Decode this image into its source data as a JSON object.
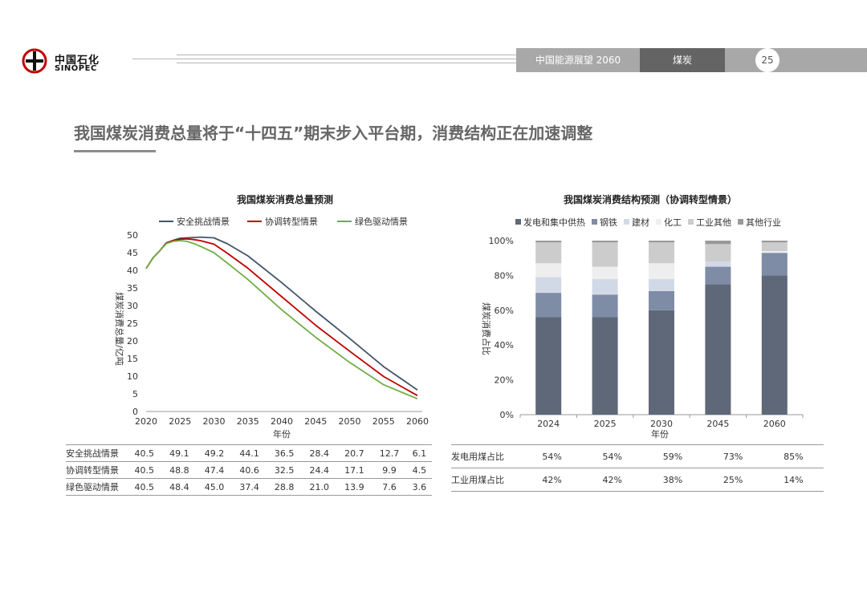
{
  "header": {
    "brand_cn": "中国石化",
    "brand_en": "SINOPEC",
    "report_title": "中国能源展望 2060",
    "section": "煤炭",
    "page_number": "25"
  },
  "slide_title": "我国煤炭消费总量将于“十四五”期末步入平台期，消费结构正在加速调整",
  "chart_data": [
    {
      "type": "line",
      "title": "我国煤炭消费总量预测",
      "xlabel": "年份",
      "ylabel": "煤炭消费总量/亿吨",
      "x": [
        2020,
        2025,
        2030,
        2035,
        2040,
        2045,
        2050,
        2055,
        2060
      ],
      "xticks": [
        "2020",
        "2025",
        "2030",
        "2035",
        "2040",
        "2045",
        "2050",
        "2055",
        "2060"
      ],
      "ylim": [
        0,
        50
      ],
      "yticks": [
        "0",
        "5",
        "10",
        "15",
        "20",
        "25",
        "30",
        "35",
        "40",
        "45",
        "50"
      ],
      "legend_position": "top",
      "series": [
        {
          "name": "安全挑战情景",
          "color": "#44546a",
          "points": [
            [
              2020,
              40.5
            ],
            [
              2021,
              43.5
            ],
            [
              2022,
              45.5
            ],
            [
              2023,
              47.8
            ],
            [
              2024,
              48.5
            ],
            [
              2025,
              49.1
            ],
            [
              2026,
              49.2
            ],
            [
              2027,
              49.3
            ],
            [
              2028,
              49.4
            ],
            [
              2029,
              49.3
            ],
            [
              2030,
              49.2
            ],
            [
              2032,
              47.5
            ],
            [
              2035,
              44.1
            ],
            [
              2040,
              36.5
            ],
            [
              2045,
              28.4
            ],
            [
              2050,
              20.7
            ],
            [
              2055,
              12.7
            ],
            [
              2060,
              6.1
            ]
          ],
          "values": [
            "40.5",
            "49.1",
            "49.2",
            "44.1",
            "36.5",
            "28.4",
            "20.7",
            "12.7",
            "6.1"
          ]
        },
        {
          "name": "协调转型情景",
          "color": "#c00000",
          "points": [
            [
              2020,
              40.5
            ],
            [
              2021,
              43.5
            ],
            [
              2022,
              45.5
            ],
            [
              2023,
              47.8
            ],
            [
              2024,
              48.4
            ],
            [
              2025,
              48.8
            ],
            [
              2026,
              48.9
            ],
            [
              2027,
              48.7
            ],
            [
              2028,
              48.4
            ],
            [
              2030,
              47.4
            ],
            [
              2032,
              44.8
            ],
            [
              2035,
              40.6
            ],
            [
              2040,
              32.5
            ],
            [
              2045,
              24.4
            ],
            [
              2050,
              17.1
            ],
            [
              2055,
              9.9
            ],
            [
              2060,
              4.5
            ]
          ],
          "values": [
            "40.5",
            "48.8",
            "47.4",
            "40.6",
            "32.5",
            "24.4",
            "17.1",
            "9.9",
            "4.5"
          ]
        },
        {
          "name": "绿色驱动情景",
          "color": "#70ad47",
          "points": [
            [
              2020,
              40.5
            ],
            [
              2021,
              43.5
            ],
            [
              2022,
              45.5
            ],
            [
              2023,
              47.6
            ],
            [
              2024,
              48.2
            ],
            [
              2025,
              48.4
            ],
            [
              2026,
              48.2
            ],
            [
              2027,
              47.6
            ],
            [
              2028,
              46.8
            ],
            [
              2030,
              45.0
            ],
            [
              2032,
              42.0
            ],
            [
              2035,
              37.4
            ],
            [
              2040,
              28.8
            ],
            [
              2045,
              21.0
            ],
            [
              2050,
              13.9
            ],
            [
              2055,
              7.6
            ],
            [
              2060,
              3.6
            ]
          ],
          "values": [
            "40.5",
            "48.4",
            "45.0",
            "37.4",
            "28.8",
            "21.0",
            "13.9",
            "7.6",
            "3.6"
          ]
        }
      ]
    },
    {
      "type": "bar",
      "stacked": true,
      "title": "我国煤炭消费结构预测（协调转型情景）",
      "xlabel": "年份",
      "ylabel": "煤炭消费占比",
      "categories": [
        "2024",
        "2025",
        "2030",
        "2045",
        "2060"
      ],
      "ylim": [
        0,
        100
      ],
      "yticks": [
        "0%",
        "20%",
        "40%",
        "60%",
        "80%",
        "100%"
      ],
      "legend_position": "top",
      "series": [
        {
          "name": "发电和集中供热",
          "color": "#5e6878",
          "values": [
            56,
            56,
            60,
            75,
            80
          ]
        },
        {
          "name": "钢铁",
          "color": "#7f8ca6",
          "values": [
            14,
            13,
            11,
            10,
            13
          ]
        },
        {
          "name": "建材",
          "color": "#d2d9e6",
          "values": [
            9,
            9,
            7,
            3,
            0
          ]
        },
        {
          "name": "化工",
          "color": "#eeeeee",
          "values": [
            8,
            7,
            9,
            0,
            1
          ]
        },
        {
          "name": "工业其他",
          "color": "#cccccc",
          "values": [
            12,
            14,
            12,
            10,
            5
          ]
        },
        {
          "name": "其他行业",
          "color": "#999999",
          "values": [
            1,
            1,
            1,
            2,
            1
          ]
        }
      ],
      "table": {
        "rows": [
          {
            "label": "发电用煤占比",
            "values": [
              "54%",
              "54%",
              "59%",
              "73%",
              "85%"
            ]
          },
          {
            "label": "工业用煤占比",
            "values": [
              "42%",
              "42%",
              "38%",
              "25%",
              "14%"
            ]
          }
        ]
      }
    }
  ]
}
